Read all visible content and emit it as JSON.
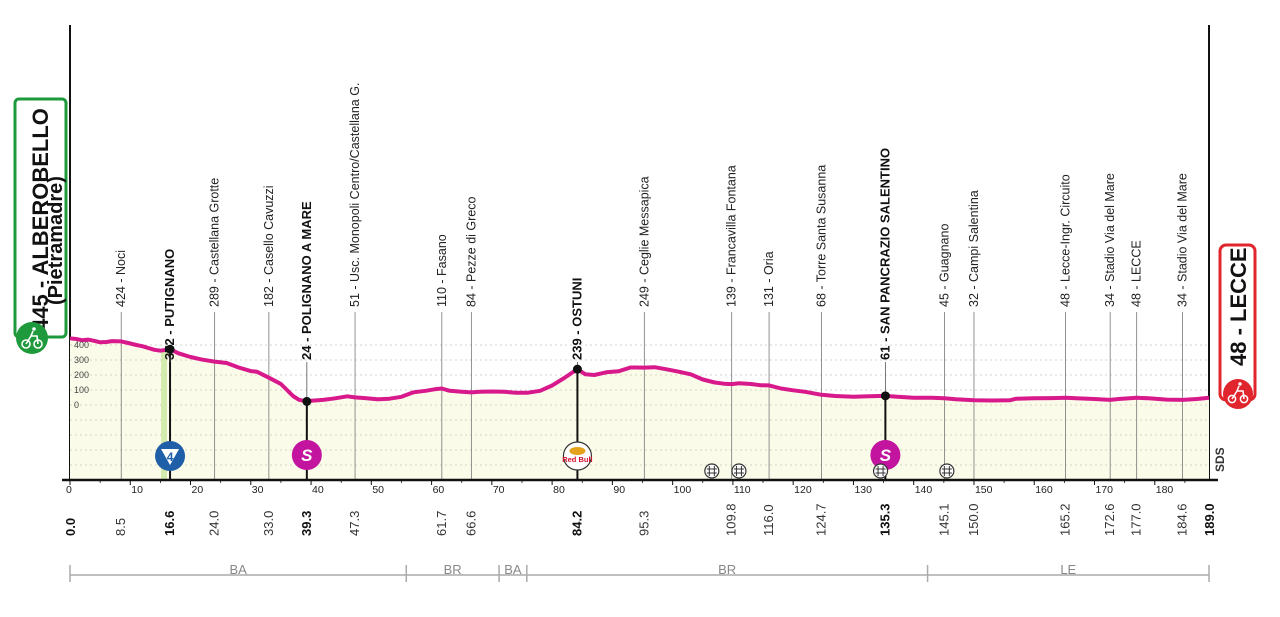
{
  "colors": {
    "profile_line": "#d8198c",
    "profile_fill": "#fbfbe9",
    "start_box": "#1e9a3c",
    "finish_box": "#e0252d",
    "climb_marker": "#1f5fa8",
    "sprint_marker": "#c2149e",
    "climb_band": "#c9e7a0"
  },
  "start": {
    "altitude": "445",
    "name": "ALBEROBELLO",
    "sub": "(Pietramadre)",
    "icon": "cyclist-start-icon"
  },
  "finish": {
    "altitude": "48",
    "name": "LECCE",
    "icon": "cyclist-finish-icon"
  },
  "altitude_ticks": [
    "400",
    "300",
    "200",
    "100",
    "0"
  ],
  "distance_ticks": [
    "0",
    "10",
    "20",
    "30",
    "40",
    "50",
    "60",
    "70",
    "80",
    "90",
    "100",
    "110",
    "120",
    "130",
    "140",
    "150",
    "160",
    "170",
    "180"
  ],
  "checkpoints": [
    {
      "label": "424 - Noci",
      "km": "8.5",
      "bold": false
    },
    {
      "label": "372 - PUTIGNANO",
      "km": "16.6",
      "bold": true
    },
    {
      "label": "289 - Castellana Grotte",
      "km": "24.0",
      "bold": false
    },
    {
      "label": "182 - Casello Cavuzzi",
      "km": "33.0",
      "bold": false
    },
    {
      "label": "24 - POLIGNANO A MARE",
      "km": "39.3",
      "bold": true
    },
    {
      "label": "51 - Usc. Monopoli Centro/Castellana G.",
      "km": "47.3",
      "bold": false
    },
    {
      "label": "110 - Fasano",
      "km": "61.7",
      "bold": false
    },
    {
      "label": "84 - Pezze di Greco",
      "km": "66.6",
      "bold": false
    },
    {
      "label": "239 - OSTUNI",
      "km": "84.2",
      "bold": true
    },
    {
      "label": "249 - Ceglie Messapica",
      "km": "95.3",
      "bold": false
    },
    {
      "label": "139 - Francavilla Fontana",
      "km": "109.8",
      "bold": false
    },
    {
      "label": "131 - Oria",
      "km": "116.0",
      "bold": false
    },
    {
      "label": "68 - Torre Santa Susanna",
      "km": "124.7",
      "bold": false
    },
    {
      "label": "61 - SAN PANCRAZIO SALENTINO",
      "km": "135.3",
      "bold": true
    },
    {
      "label": "45 - Guagnano",
      "km": "145.1",
      "bold": false
    },
    {
      "label": "32 - Campi Salentina",
      "km": "150.0",
      "bold": false
    },
    {
      "label": "48 - Lecce-Ingr. Circuito",
      "km": "165.2",
      "bold": false
    },
    {
      "label": "34 - Stadio Via del Mare",
      "km": "172.6",
      "bold": false
    },
    {
      "label": "48 - LECCE",
      "km": "177.0",
      "bold": false
    },
    {
      "label": "34 - Stadio Via del Mare",
      "km": "184.6",
      "bold": false
    }
  ],
  "start_km": "0.0",
  "finish_km": "189.0",
  "climb": {
    "km": 16.6,
    "category": "4",
    "icon": "climb-category-4-icon"
  },
  "sprints": [
    {
      "km": 39.3,
      "label": "S",
      "icon": "intermediate-sprint-icon"
    },
    {
      "km": 135.3,
      "label": "S",
      "icon": "intermediate-sprint-icon"
    }
  ],
  "sponsor_marker": {
    "km": 84.2,
    "label": "Red Bull",
    "icon": "red-bull-km-icon"
  },
  "level_crossings": [
    {
      "km": 106.5,
      "icon": "level-crossing-icon"
    },
    {
      "km": 111.0,
      "icon": "level-crossing-icon"
    },
    {
      "km": 134.5,
      "icon": "level-crossing-icon"
    },
    {
      "km": 145.5,
      "icon": "level-crossing-icon"
    }
  ],
  "sds_label": "SDS",
  "provinces": [
    {
      "name": "BA",
      "from": 0,
      "to": 55.8
    },
    {
      "name": "BR",
      "from": 55.8,
      "to": 71.2
    },
    {
      "name": "BA",
      "from": 71.2,
      "to": 75.8
    },
    {
      "name": "BR",
      "from": 75.8,
      "to": 142.3
    },
    {
      "name": "LE",
      "from": 142.3,
      "to": 189
    }
  ],
  "profile": [
    [
      0,
      445
    ],
    [
      1,
      440
    ],
    [
      2,
      432
    ],
    [
      3,
      436
    ],
    [
      4,
      428
    ],
    [
      5,
      418
    ],
    [
      6,
      420
    ],
    [
      7,
      426
    ],
    [
      8.5,
      424
    ],
    [
      10,
      410
    ],
    [
      11,
      400
    ],
    [
      12,
      392
    ],
    [
      13,
      380
    ],
    [
      14,
      368
    ],
    [
      15,
      362
    ],
    [
      16.6,
      372
    ],
    [
      18,
      345
    ],
    [
      20,
      320
    ],
    [
      22,
      302
    ],
    [
      24,
      289
    ],
    [
      26,
      280
    ],
    [
      28,
      250
    ],
    [
      30,
      226
    ],
    [
      31,
      222
    ],
    [
      33,
      182
    ],
    [
      35,
      140
    ],
    [
      36,
      100
    ],
    [
      37,
      60
    ],
    [
      38,
      35
    ],
    [
      39.3,
      24
    ],
    [
      40,
      28
    ],
    [
      42,
      34
    ],
    [
      44,
      45
    ],
    [
      46,
      58
    ],
    [
      47.3,
      51
    ],
    [
      49,
      46
    ],
    [
      51,
      38
    ],
    [
      53,
      42
    ],
    [
      55,
      55
    ],
    [
      57,
      85
    ],
    [
      59,
      95
    ],
    [
      60.5,
      105
    ],
    [
      61.7,
      110
    ],
    [
      63,
      95
    ],
    [
      65,
      88
    ],
    [
      66.6,
      84
    ],
    [
      68,
      88
    ],
    [
      70,
      90
    ],
    [
      72,
      88
    ],
    [
      74,
      82
    ],
    [
      76,
      82
    ],
    [
      78,
      95
    ],
    [
      80,
      130
    ],
    [
      82,
      180
    ],
    [
      84.2,
      239
    ],
    [
      85.5,
      205
    ],
    [
      87,
      200
    ],
    [
      89,
      218
    ],
    [
      91,
      225
    ],
    [
      93,
      250
    ],
    [
      95.3,
      249
    ],
    [
      97,
      252
    ],
    [
      99,
      238
    ],
    [
      101,
      222
    ],
    [
      103,
      205
    ],
    [
      105,
      170
    ],
    [
      107,
      150
    ],
    [
      108.5,
      142
    ],
    [
      109.8,
      139
    ],
    [
      111,
      145
    ],
    [
      113,
      140
    ],
    [
      114.5,
      132
    ],
    [
      116,
      131
    ],
    [
      118,
      110
    ],
    [
      120,
      98
    ],
    [
      122,
      88
    ],
    [
      124.7,
      68
    ],
    [
      127,
      60
    ],
    [
      130,
      55
    ],
    [
      132.5,
      58
    ],
    [
      135.3,
      61
    ],
    [
      137,
      56
    ],
    [
      140,
      48
    ],
    [
      143,
      48
    ],
    [
      145.1,
      45
    ],
    [
      147,
      38
    ],
    [
      150,
      32
    ],
    [
      153,
      30
    ],
    [
      156,
      32
    ],
    [
      157,
      42
    ],
    [
      160,
      45
    ],
    [
      163,
      46
    ],
    [
      165.2,
      48
    ],
    [
      167,
      45
    ],
    [
      170,
      40
    ],
    [
      172.6,
      34
    ],
    [
      174,
      40
    ],
    [
      177,
      48
    ],
    [
      179,
      45
    ],
    [
      182,
      36
    ],
    [
      184.6,
      34
    ],
    [
      187,
      40
    ],
    [
      189,
      48
    ]
  ]
}
